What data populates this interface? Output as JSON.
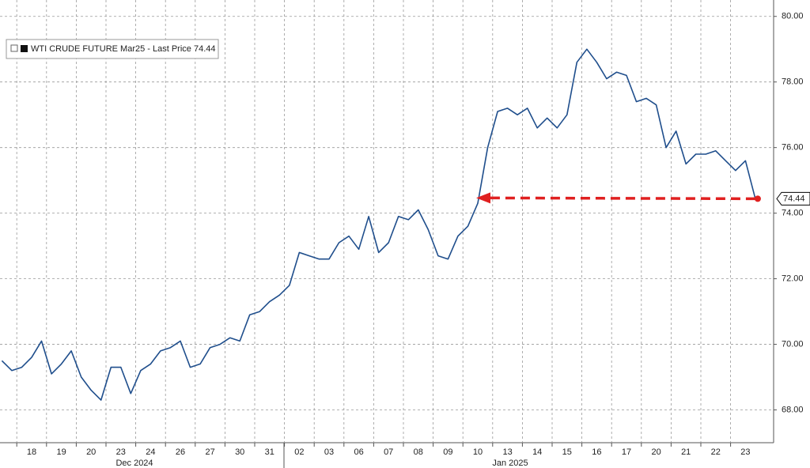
{
  "chart_data": {
    "type": "line",
    "categories": [
      null,
      null,
      null,
      "18",
      null,
      null,
      "19",
      null,
      null,
      "20",
      null,
      null,
      "23",
      null,
      null,
      "24",
      null,
      null,
      "26",
      null,
      null,
      "27",
      null,
      null,
      "30",
      null,
      null,
      "31",
      null,
      null,
      "02",
      null,
      null,
      "03",
      null,
      null,
      "06",
      null,
      null,
      "07",
      null,
      null,
      "08",
      null,
      null,
      "09",
      null,
      null,
      "10",
      null,
      null,
      "13",
      null,
      null,
      "14",
      null,
      null,
      "15",
      null,
      null,
      "16",
      null,
      null,
      "17",
      null,
      null,
      "20",
      null,
      null,
      "21",
      null,
      null,
      "22",
      null,
      null,
      "23",
      null
    ],
    "month_labels": [
      "Dec 2024",
      "Jan 2025"
    ],
    "series": [
      {
        "name": "WTI CRUDE FUTURE Mar25 - Last Price 74.44",
        "color": "#1f4e8c",
        "values": [
          69.5,
          69.2,
          69.3,
          69.6,
          70.1,
          69.1,
          69.4,
          69.8,
          69.0,
          68.6,
          68.3,
          69.3,
          69.3,
          68.5,
          69.2,
          69.4,
          69.8,
          69.9,
          70.1,
          69.3,
          69.4,
          69.9,
          70.0,
          70.2,
          70.1,
          70.9,
          71.0,
          71.3,
          71.5,
          71.8,
          72.8,
          72.7,
          72.6,
          72.6,
          73.1,
          73.3,
          72.9,
          73.9,
          72.8,
          73.1,
          73.9,
          73.8,
          74.1,
          73.5,
          72.7,
          72.6,
          73.3,
          73.6,
          74.3,
          76.0,
          77.1,
          77.2,
          77.0,
          77.2,
          76.6,
          76.9,
          76.6,
          77.0,
          78.6,
          79.0,
          78.6,
          78.1,
          78.3,
          78.2,
          77.4,
          77.5,
          77.3,
          76.0,
          76.5,
          75.5,
          75.8,
          75.8,
          75.9,
          75.6,
          75.3,
          75.6,
          74.44
        ]
      }
    ],
    "ylim": [
      67,
      80.5
    ],
    "yticks": [
      {
        "value": 68,
        "label": "68.00"
      },
      {
        "value": 70,
        "label": "70.00"
      },
      {
        "value": 72,
        "label": "72.00"
      },
      {
        "value": 74,
        "label": "74.00"
      },
      {
        "value": 76,
        "label": "76.00"
      },
      {
        "value": 78,
        "label": "78.00"
      },
      {
        "value": 80,
        "label": "80.00"
      }
    ],
    "grid": true
  }
}
